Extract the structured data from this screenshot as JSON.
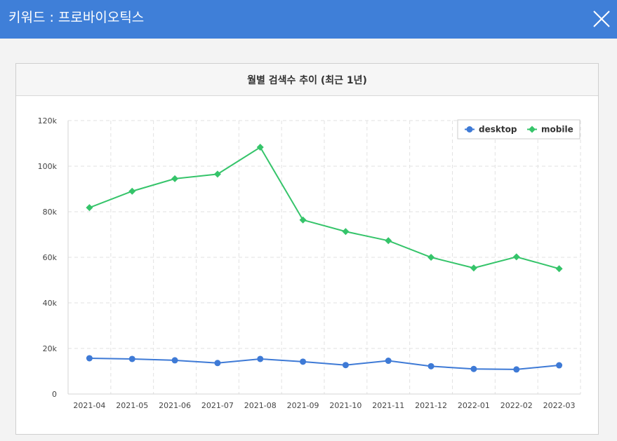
{
  "header": {
    "title": "키워드 : 프로바이오틱스",
    "close_icon": "close-icon"
  },
  "panel": {
    "title": "월별 검색수 추이 (최근 1년)"
  },
  "colors": {
    "header_bg": "#3f7fd8",
    "desktop": "#3e7ad6",
    "mobile": "#35c46a"
  },
  "chart_data": {
    "type": "line",
    "title": "월별 검색수 추이 (최근 1년)",
    "categories": [
      "2021-04",
      "2021-05",
      "2021-06",
      "2021-07",
      "2021-08",
      "2021-09",
      "2021-10",
      "2021-11",
      "2021-12",
      "2022-01",
      "2022-02",
      "2022-03"
    ],
    "series": [
      {
        "name": "desktop",
        "marker": "circle",
        "values": [
          15700,
          15400,
          14800,
          13600,
          15400,
          14200,
          12700,
          14600,
          12200,
          11000,
          10800,
          12600
        ]
      },
      {
        "name": "mobile",
        "marker": "diamond",
        "values": [
          81800,
          89000,
          94500,
          96500,
          108300,
          76400,
          71300,
          67300,
          60000,
          55300,
          60200,
          55000
        ]
      }
    ],
    "y_ticks": [
      "0",
      "20k",
      "40k",
      "60k",
      "80k",
      "100k",
      "120k"
    ],
    "ylim": [
      0,
      120000
    ],
    "grid": true,
    "legend_position": "top-right"
  }
}
